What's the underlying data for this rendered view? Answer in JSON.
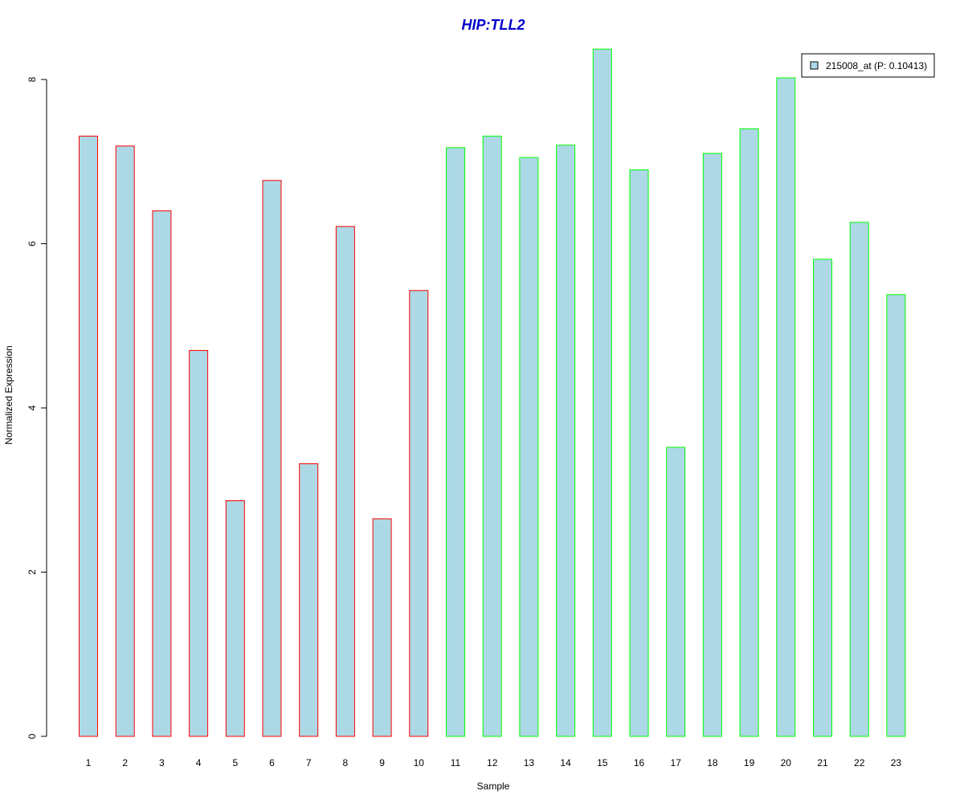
{
  "chart_data": {
    "type": "bar",
    "title": "HIP:TLL2",
    "xlabel": "Sample",
    "ylabel": "Normalized Expression",
    "categories": [
      "1",
      "2",
      "3",
      "4",
      "5",
      "6",
      "7",
      "8",
      "9",
      "10",
      "11",
      "12",
      "13",
      "14",
      "15",
      "16",
      "17",
      "18",
      "19",
      "20",
      "21",
      "22",
      "23"
    ],
    "series": [
      {
        "name": "215008_at (P: 0.10413)",
        "values": [
          7.31,
          7.19,
          6.4,
          4.7,
          2.87,
          6.77,
          3.32,
          6.21,
          2.65,
          5.43,
          7.17,
          7.31,
          7.05,
          7.2,
          8.37,
          6.9,
          3.52,
          7.1,
          7.4,
          8.02,
          5.81,
          6.26,
          5.38
        ]
      }
    ],
    "groups": [
      1,
      1,
      1,
      1,
      1,
      1,
      1,
      1,
      1,
      1,
      2,
      2,
      2,
      2,
      2,
      2,
      2,
      2,
      2,
      2,
      2,
      2,
      2
    ],
    "ylim": [
      0,
      8.4
    ],
    "yticks": [
      0,
      2,
      4,
      6,
      8
    ],
    "grid": false,
    "legend_position": "top-right",
    "colors": {
      "title": "#0000CC",
      "bar_fill": "#ADD8E6",
      "group1_border": "#FF0000",
      "group2_border": "#00FF00",
      "axis": "#000000"
    }
  }
}
